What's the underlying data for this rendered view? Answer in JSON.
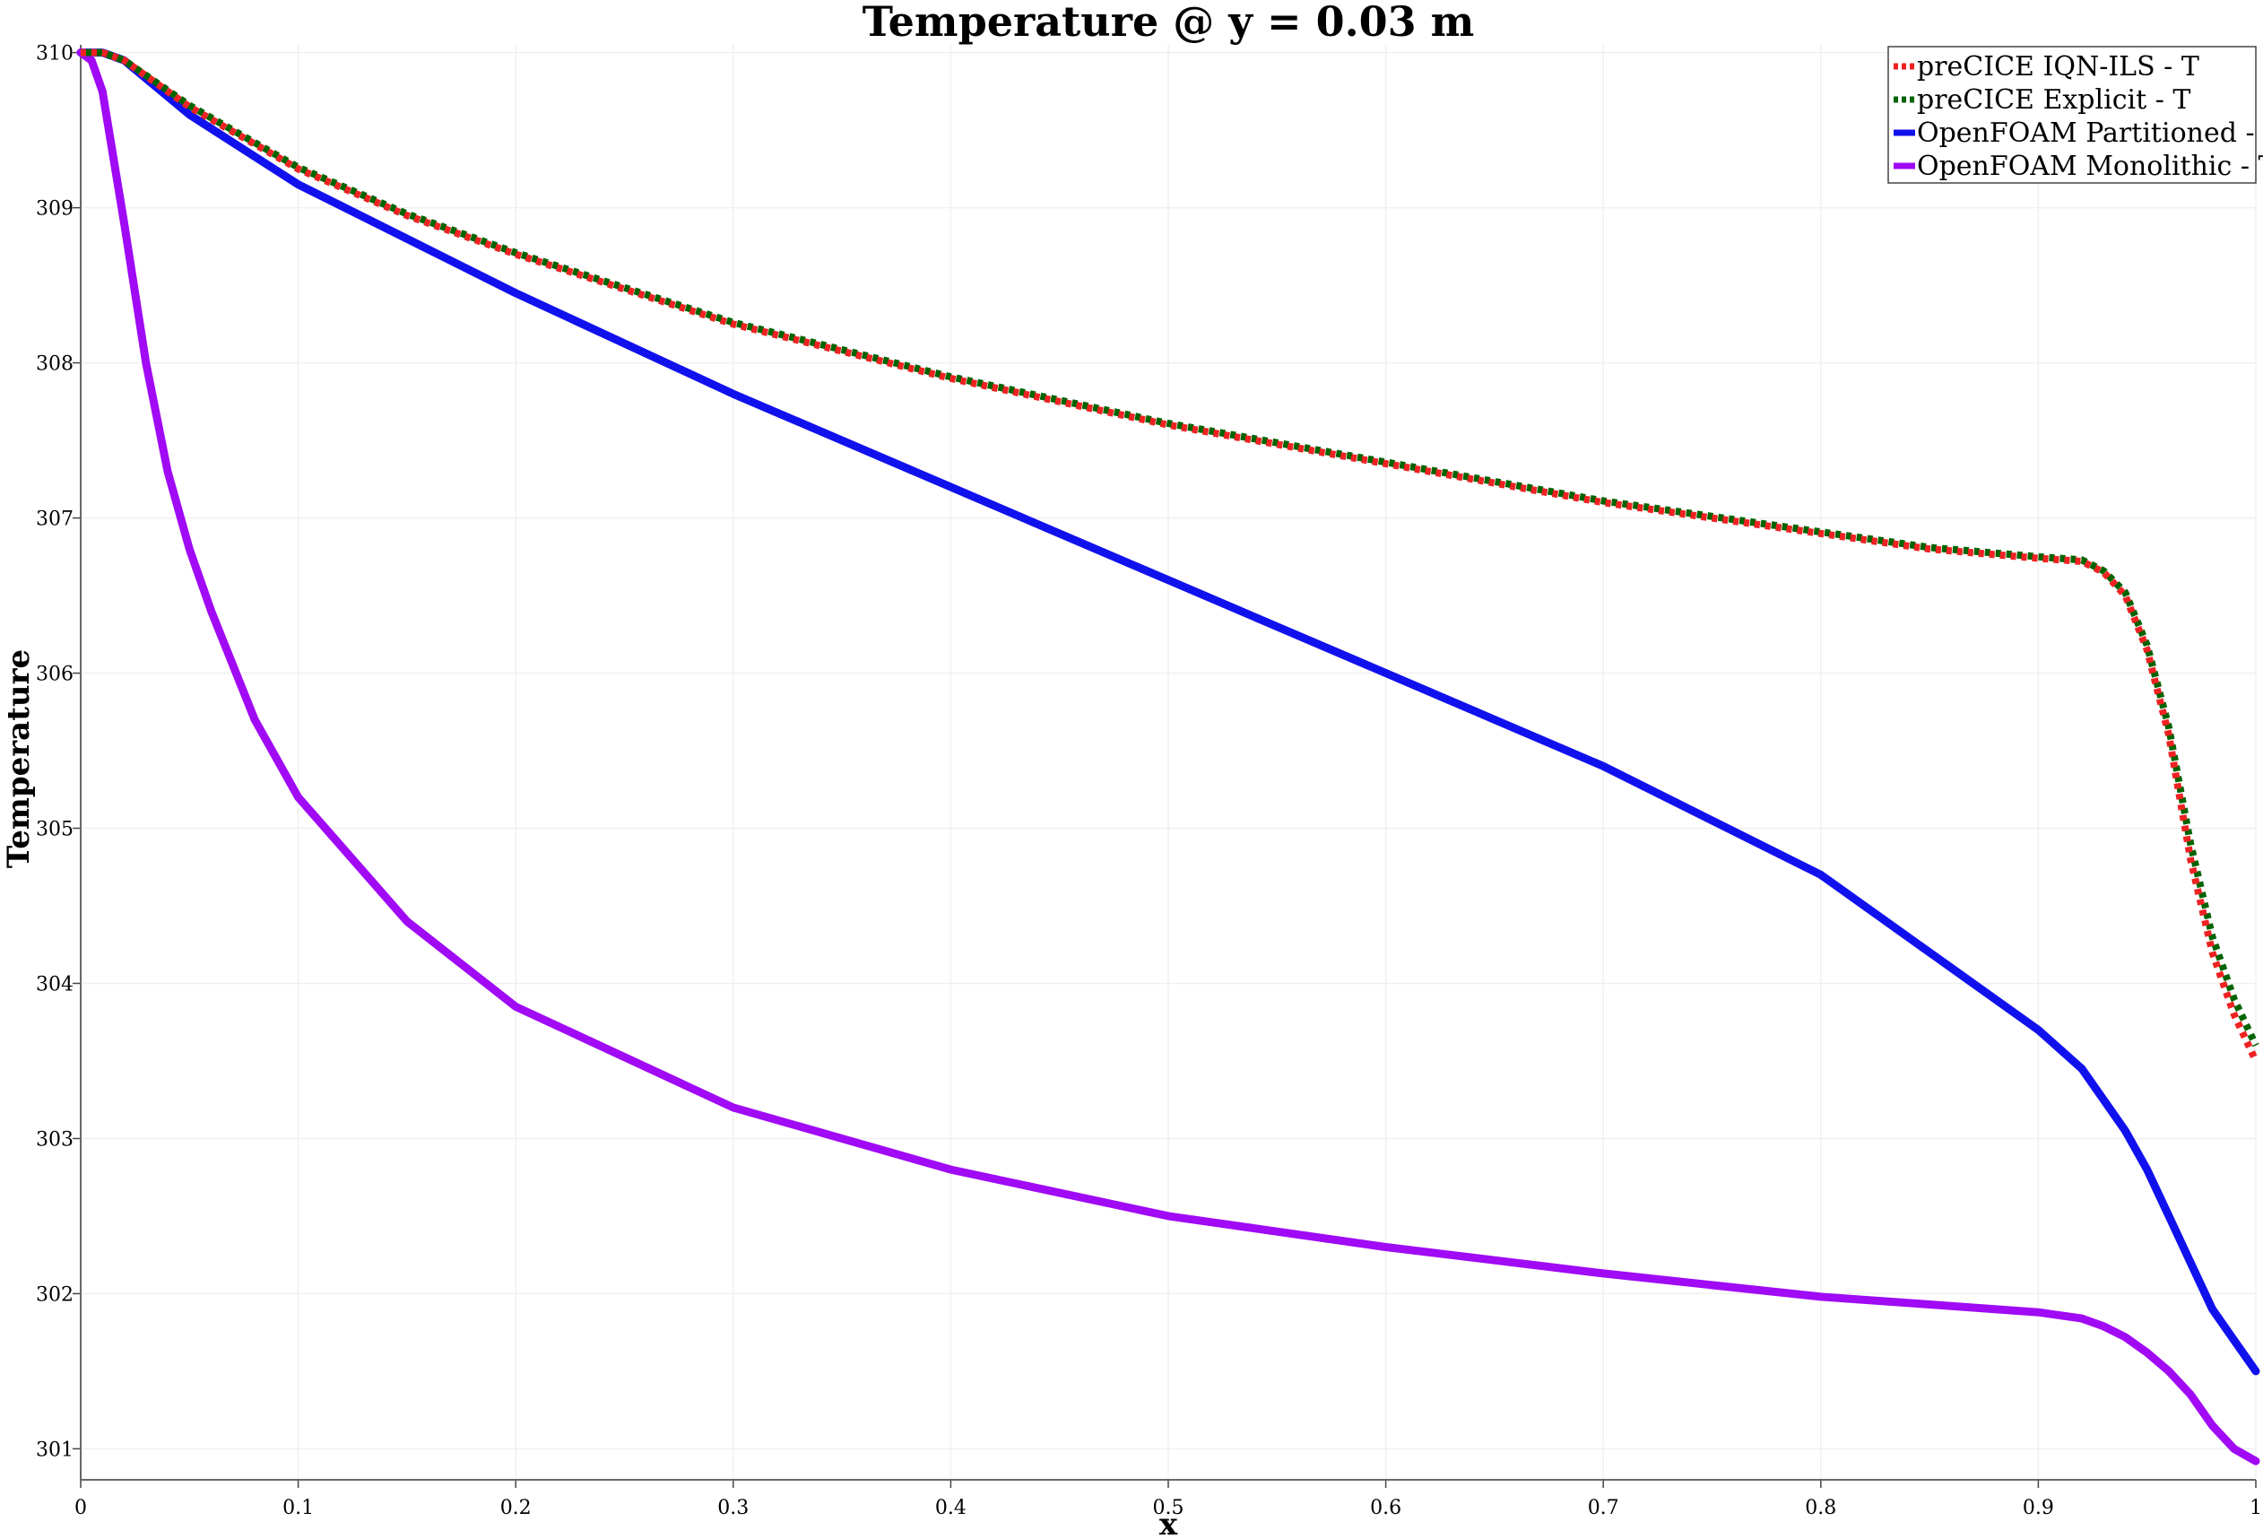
{
  "chart_data": {
    "type": "line",
    "title": "Temperature @ y = 0.03 m",
    "xlabel": "x",
    "ylabel": "Temperature",
    "xlim": [
      0,
      1
    ],
    "ylim": [
      300.8,
      310.05
    ],
    "xticks": [
      "0",
      "0.1",
      "0.2",
      "0.3",
      "0.4",
      "0.5",
      "0.6",
      "0.7",
      "0.8",
      "0.9",
      "1"
    ],
    "yticks": [
      "301",
      "302",
      "303",
      "304",
      "305",
      "306",
      "307",
      "308",
      "309",
      "310"
    ],
    "grid": true,
    "legend_position": "top-right",
    "series": [
      {
        "name": "preCICE IQN-ILS - T",
        "color": "#ee2222",
        "style": "dotted",
        "x": [
          0,
          0.01,
          0.02,
          0.05,
          0.1,
          0.15,
          0.2,
          0.3,
          0.4,
          0.5,
          0.6,
          0.7,
          0.8,
          0.85,
          0.9,
          0.92,
          0.93,
          0.94,
          0.95,
          0.96,
          0.97,
          0.98,
          0.99,
          1.0
        ],
        "y": [
          310,
          310,
          309.95,
          309.65,
          309.25,
          308.95,
          308.7,
          308.25,
          307.9,
          307.6,
          307.35,
          307.1,
          306.9,
          306.8,
          306.74,
          306.72,
          306.65,
          306.5,
          306.15,
          305.6,
          304.8,
          304.2,
          303.8,
          303.5
        ]
      },
      {
        "name": "preCICE Explicit - T",
        "color": "#006400",
        "style": "dotted",
        "x": [
          0,
          0.01,
          0.02,
          0.05,
          0.1,
          0.15,
          0.2,
          0.3,
          0.4,
          0.5,
          0.6,
          0.7,
          0.8,
          0.85,
          0.9,
          0.92,
          0.93,
          0.94,
          0.95,
          0.96,
          0.97,
          0.98,
          0.99,
          1.0
        ],
        "y": [
          310,
          310,
          309.95,
          309.66,
          309.26,
          308.96,
          308.71,
          308.26,
          307.91,
          307.61,
          307.36,
          307.11,
          306.91,
          306.81,
          306.75,
          306.73,
          306.66,
          306.52,
          306.18,
          305.65,
          304.9,
          304.3,
          303.9,
          303.6
        ]
      },
      {
        "name": "OpenFOAM Partitioned - T",
        "color": "#1111ee",
        "style": "solid",
        "x": [
          0,
          0.01,
          0.02,
          0.05,
          0.1,
          0.15,
          0.2,
          0.3,
          0.4,
          0.5,
          0.6,
          0.7,
          0.8,
          0.85,
          0.9,
          0.92,
          0.93,
          0.94,
          0.95,
          0.96,
          0.97,
          0.98,
          0.99,
          1.0
        ],
        "y": [
          310,
          310,
          309.95,
          309.6,
          309.15,
          308.8,
          308.45,
          307.8,
          307.2,
          306.6,
          306.0,
          305.4,
          304.7,
          304.2,
          303.7,
          303.45,
          303.25,
          303.05,
          302.8,
          302.5,
          302.2,
          301.9,
          301.7,
          301.5
        ]
      },
      {
        "name": "OpenFOAM Monolithic - T",
        "color": "#a00af5",
        "style": "solid",
        "x": [
          0,
          0.005,
          0.01,
          0.02,
          0.03,
          0.04,
          0.05,
          0.06,
          0.08,
          0.1,
          0.15,
          0.2,
          0.3,
          0.4,
          0.5,
          0.6,
          0.7,
          0.8,
          0.85,
          0.9,
          0.92,
          0.93,
          0.94,
          0.95,
          0.96,
          0.97,
          0.98,
          0.99,
          1.0
        ],
        "y": [
          310,
          309.95,
          309.75,
          308.9,
          308.0,
          307.3,
          306.8,
          306.4,
          305.7,
          305.2,
          304.4,
          303.85,
          303.2,
          302.8,
          302.5,
          302.3,
          302.13,
          301.98,
          301.93,
          301.88,
          301.84,
          301.79,
          301.72,
          301.62,
          301.5,
          301.35,
          301.15,
          301.0,
          300.92
        ]
      }
    ]
  }
}
